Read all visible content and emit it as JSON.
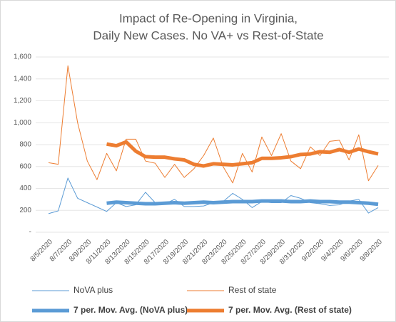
{
  "chart_data": {
    "type": "line",
    "title": [
      "Impact of Re-Opening in Virginia,",
      "Daily New Cases. No VA+ vs Rest-of-State"
    ],
    "categories": [
      "8/5/2020",
      null,
      "8/7/2020",
      null,
      "8/9/2020",
      null,
      "8/11/2020",
      null,
      "8/13/2020",
      null,
      "8/15/2020",
      null,
      "8/17/2020",
      null,
      "8/19/2020",
      null,
      "8/21/2020",
      null,
      "8/23/2020",
      null,
      "8/25/2020",
      null,
      "8/27/2020",
      null,
      "8/29/2020",
      null,
      "8/31/2020",
      null,
      "9/2/2020",
      null,
      "9/4/2020",
      null,
      "9/6/2020",
      null,
      "9/8/2020"
    ],
    "series": [
      {
        "name": "NoVA plus",
        "color": "#5b9bd5",
        "width": 1,
        "values": [
          170,
          195,
          495,
          310,
          270,
          230,
          190,
          270,
          235,
          250,
          365,
          270,
          260,
          300,
          235,
          235,
          240,
          270,
          280,
          355,
          300,
          225,
          280,
          270,
          270,
          335,
          310,
          270,
          260,
          245,
          250,
          285,
          300,
          175,
          225
        ]
      },
      {
        "name": "Rest of state",
        "color": "#ed7d31",
        "width": 1,
        "values": [
          635,
          620,
          1520,
          1000,
          650,
          480,
          720,
          560,
          850,
          850,
          650,
          630,
          500,
          620,
          500,
          580,
          700,
          860,
          600,
          450,
          720,
          550,
          870,
          700,
          900,
          650,
          580,
          780,
          700,
          830,
          840,
          660,
          890,
          470,
          610
        ]
      },
      {
        "name": "7 per. Mov. Avg. (NoVA plus)",
        "color": "#5b9bd5",
        "width": 5,
        "values": [
          null,
          null,
          null,
          null,
          null,
          null,
          265,
          275,
          270,
          265,
          260,
          260,
          265,
          270,
          265,
          270,
          275,
          270,
          275,
          280,
          280,
          280,
          285,
          285,
          285,
          280,
          280,
          285,
          280,
          280,
          275,
          275,
          270,
          265,
          255
        ]
      },
      {
        "name": "7 per. Mov. Avg. (Rest of state)",
        "color": "#ed7d31",
        "width": 5,
        "values": [
          null,
          null,
          null,
          null,
          null,
          null,
          805,
          790,
          825,
          740,
          690,
          685,
          685,
          670,
          660,
          620,
          605,
          625,
          620,
          615,
          625,
          635,
          675,
          675,
          680,
          690,
          710,
          715,
          735,
          730,
          755,
          730,
          760,
          735,
          715
        ]
      }
    ],
    "ylim": [
      0,
      1600
    ],
    "yticks": [
      {
        "value": 0,
        "label": "-"
      },
      200,
      400,
      600,
      800,
      {
        "value": 1000,
        "label": "1,000"
      },
      {
        "value": 1200,
        "label": "1,200"
      },
      {
        "value": 1400,
        "label": "1,400"
      },
      {
        "value": 1600,
        "label": "1,600"
      }
    ],
    "grid": true
  }
}
